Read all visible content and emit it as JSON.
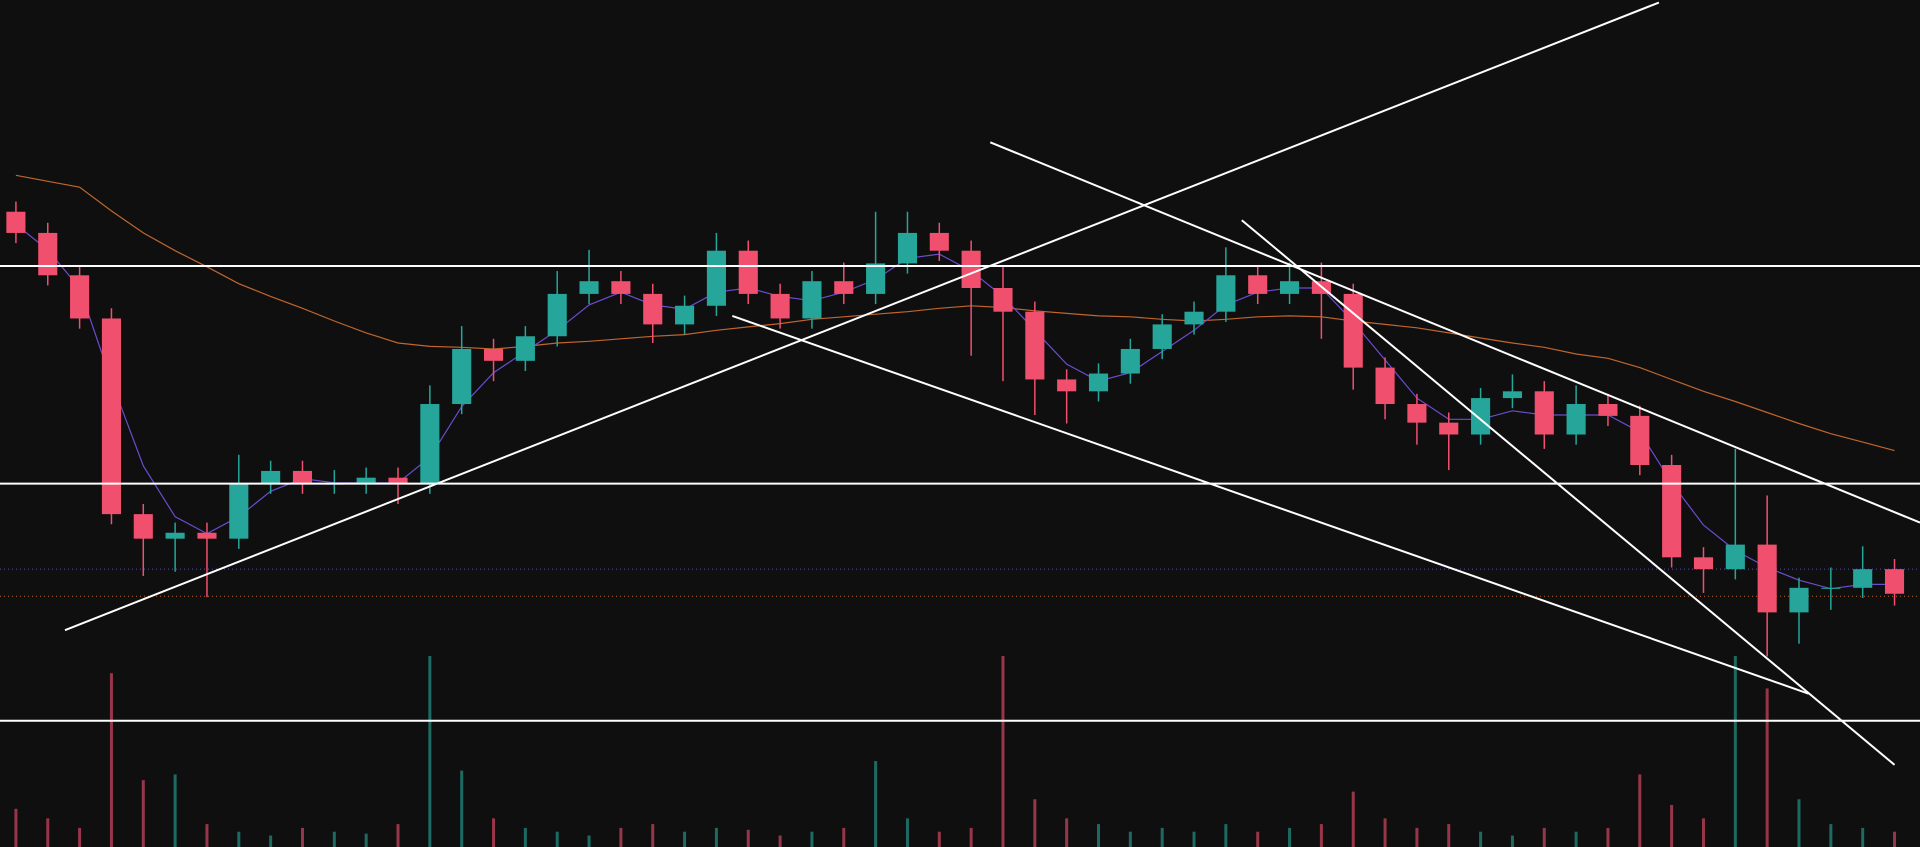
{
  "chart_data": {
    "type": "candlestick",
    "xlim": [
      -0.5,
      59.8
    ],
    "ylim": [
      0,
      100
    ],
    "volume_ylim": [
      0,
      100
    ],
    "up_color": "#26a69a",
    "down_color": "#f0506e",
    "candles": [
      [
        75.0,
        76.2,
        71.3,
        72.5
      ],
      [
        72.5,
        73.7,
        66.3,
        67.5
      ],
      [
        67.5,
        68.7,
        61.2,
        62.4
      ],
      [
        62.4,
        63.6,
        38.1,
        39.3
      ],
      [
        39.3,
        40.5,
        32.0,
        36.4
      ],
      [
        36.4,
        38.3,
        32.5,
        37.1
      ],
      [
        37.1,
        38.3,
        29.5,
        36.4
      ],
      [
        36.4,
        46.3,
        35.2,
        42.9
      ],
      [
        42.9,
        45.6,
        41.7,
        44.4
      ],
      [
        44.4,
        45.6,
        41.7,
        42.9
      ],
      [
        42.9,
        44.5,
        41.7,
        42.9
      ],
      [
        42.9,
        44.8,
        41.7,
        43.6
      ],
      [
        43.6,
        44.8,
        40.5,
        42.9
      ],
      [
        42.9,
        54.5,
        41.7,
        52.3
      ],
      [
        52.3,
        61.5,
        51.1,
        58.8
      ],
      [
        58.8,
        60.0,
        55.0,
        57.4
      ],
      [
        57.4,
        61.5,
        56.2,
        60.3
      ],
      [
        60.3,
        68.0,
        59.1,
        65.3
      ],
      [
        65.3,
        70.5,
        64.1,
        66.8
      ],
      [
        66.8,
        68.0,
        64.1,
        65.3
      ],
      [
        65.3,
        66.5,
        59.5,
        61.7
      ],
      [
        61.7,
        65.1,
        60.5,
        63.9
      ],
      [
        63.9,
        72.5,
        62.7,
        70.4
      ],
      [
        70.4,
        71.6,
        64.1,
        65.3
      ],
      [
        65.3,
        66.5,
        61.2,
        62.4
      ],
      [
        62.4,
        68.0,
        61.2,
        66.8
      ],
      [
        66.8,
        69.0,
        64.1,
        65.3
      ],
      [
        65.3,
        75.0,
        64.1,
        68.9
      ],
      [
        68.9,
        75.0,
        67.7,
        72.5
      ],
      [
        72.5,
        73.7,
        69.2,
        70.4
      ],
      [
        70.4,
        71.6,
        58.0,
        66.0
      ],
      [
        66.0,
        68.5,
        55.0,
        63.2
      ],
      [
        63.2,
        64.4,
        51.0,
        55.2
      ],
      [
        55.2,
        56.4,
        50.0,
        53.8
      ],
      [
        53.8,
        57.1,
        52.6,
        55.9
      ],
      [
        55.9,
        60.0,
        54.7,
        58.8
      ],
      [
        58.8,
        62.9,
        57.6,
        61.7
      ],
      [
        61.7,
        64.4,
        60.5,
        63.2
      ],
      [
        63.2,
        70.8,
        62.0,
        67.5
      ],
      [
        67.5,
        68.7,
        64.1,
        65.3
      ],
      [
        65.3,
        69.0,
        64.1,
        66.8
      ],
      [
        66.8,
        69.0,
        60.0,
        65.3
      ],
      [
        65.3,
        66.5,
        54.0,
        56.6
      ],
      [
        56.6,
        57.8,
        50.5,
        52.3
      ],
      [
        52.3,
        53.5,
        47.5,
        50.1
      ],
      [
        50.1,
        51.3,
        44.5,
        48.7
      ],
      [
        48.7,
        54.2,
        47.5,
        53.0
      ],
      [
        53.0,
        55.8,
        51.8,
        53.8
      ],
      [
        53.8,
        55.0,
        47.0,
        48.7
      ],
      [
        48.7,
        54.5,
        47.5,
        52.3
      ],
      [
        52.3,
        53.5,
        49.7,
        50.9
      ],
      [
        50.9,
        52.1,
        43.9,
        45.1
      ],
      [
        45.1,
        46.3,
        33.0,
        34.2
      ],
      [
        34.2,
        35.4,
        30.0,
        32.8
      ],
      [
        32.8,
        47.0,
        31.6,
        35.7
      ],
      [
        35.7,
        41.5,
        22.5,
        27.7
      ],
      [
        27.7,
        31.8,
        24.0,
        30.6
      ],
      [
        30.6,
        33.0,
        28.0,
        30.6
      ],
      [
        30.6,
        35.5,
        29.4,
        32.8
      ],
      [
        32.8,
        34.0,
        28.5,
        29.9
      ]
    ],
    "volumes": [
      20,
      15,
      10,
      91,
      35,
      38,
      12,
      8,
      6,
      10,
      8,
      7,
      12,
      100,
      40,
      15,
      10,
      8,
      6,
      10,
      12,
      8,
      10,
      9,
      6,
      8,
      10,
      45,
      15,
      8,
      10,
      100,
      25,
      15,
      12,
      8,
      10,
      8,
      12,
      8,
      10,
      12,
      29,
      15,
      10,
      12,
      8,
      6,
      10,
      8,
      10,
      38,
      22,
      15,
      100,
      83,
      25,
      12,
      10,
      8
    ],
    "moving_averages": [
      {
        "color": "#c0652d",
        "values": [
          79.3,
          78.6,
          77.9,
          75.1,
          72.5,
          70.4,
          68.5,
          66.5,
          65.0,
          63.6,
          62.1,
          60.7,
          59.5,
          59.1,
          59.0,
          58.8,
          59.1,
          59.5,
          59.7,
          60.0,
          60.3,
          60.5,
          61.0,
          61.4,
          61.8,
          62.3,
          62.6,
          62.9,
          63.2,
          63.6,
          63.9,
          63.7,
          63.3,
          63.0,
          62.7,
          62.6,
          62.3,
          62.1,
          62.3,
          62.6,
          62.7,
          62.6,
          62.1,
          61.7,
          61.3,
          60.7,
          60.1,
          59.5,
          59.0,
          58.2,
          57.7,
          56.6,
          55.2,
          53.8,
          52.6,
          51.3,
          50.0,
          48.8,
          47.8,
          46.8
        ]
      },
      {
        "color": "#6b4ccf",
        "values": [
          73.5,
          70.5,
          66,
          55,
          45,
          39,
          37,
          39,
          42,
          43.5,
          43,
          43,
          43,
          46,
          52,
          56,
          58.5,
          61,
          64,
          65.5,
          64,
          63.5,
          65.5,
          66,
          65,
          64.5,
          65.5,
          67,
          69.5,
          70,
          68,
          65,
          61,
          57,
          55,
          56,
          58.5,
          61,
          64,
          65.5,
          66,
          66,
          62,
          57.5,
          53,
          50.5,
          50.5,
          51.5,
          51,
          51,
          51,
          49,
          43,
          38,
          35,
          33,
          31.5,
          30.5,
          31,
          31
        ]
      }
    ],
    "levels": [
      68.6,
      42.9,
      14.9
    ],
    "dotted_levels": [
      {
        "value": 32.8,
        "color": "#5a4ad0"
      },
      {
        "value": 29.6,
        "color": "#c0652d"
      }
    ],
    "trend_lines": [
      [
        1.54,
        25.6,
        51.6,
        99.7
      ],
      [
        30.6,
        83.2,
        59.8,
        38.3
      ],
      [
        38.5,
        74.0,
        59.0,
        9.7
      ],
      [
        22.5,
        62.7,
        56.3,
        18.1
      ]
    ]
  }
}
